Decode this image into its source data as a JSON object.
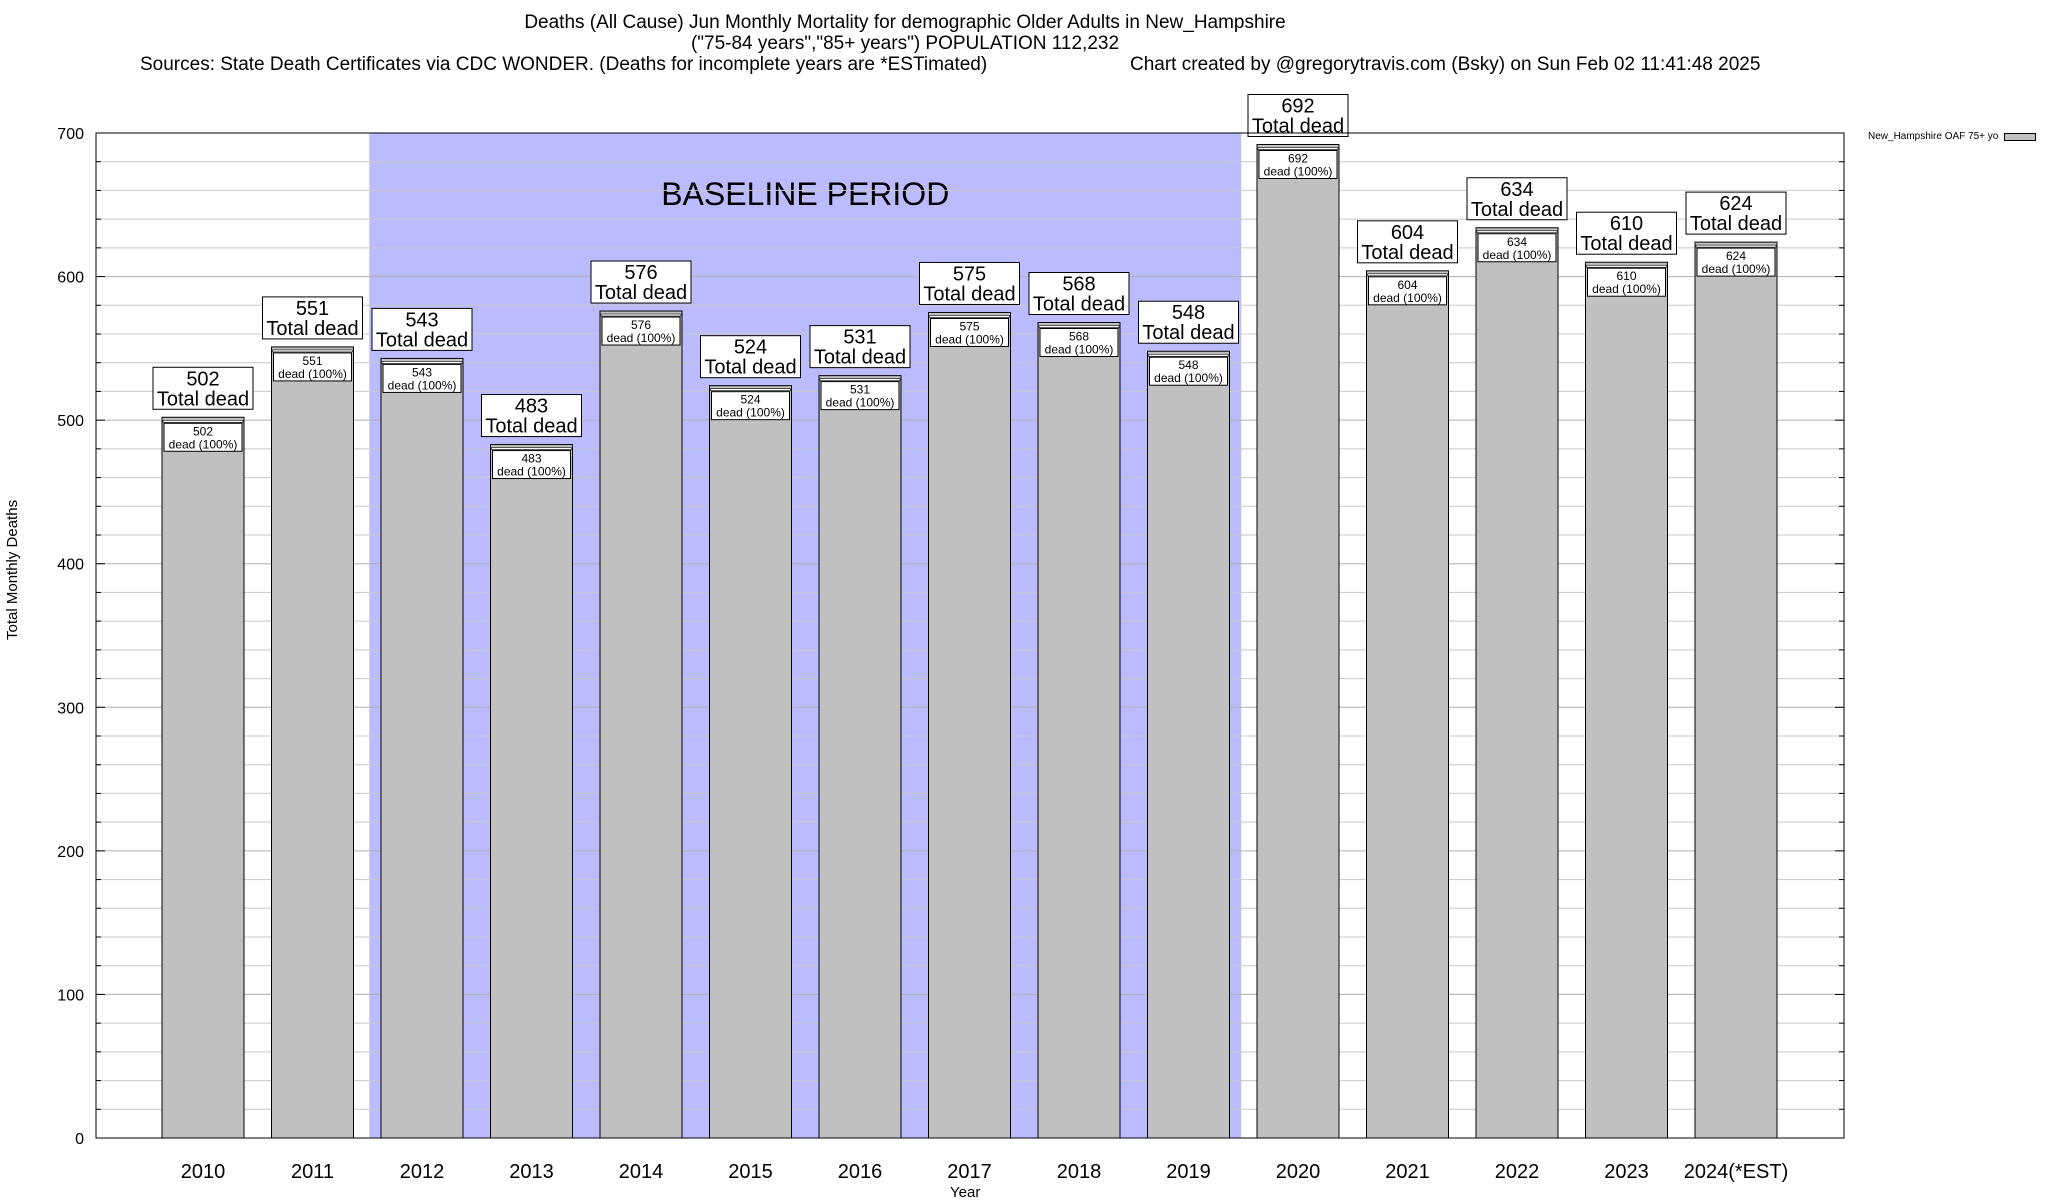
{
  "chart_data": {
    "type": "bar",
    "title_lines": [
      "Deaths (All Cause) Jun Monthly Mortality for demographic Older Adults in New_Hampshire",
      "(\"75-84 years\",\"85+ years\") POPULATION 112,232"
    ],
    "sources": "Sources: State Death Certificates via CDC WONDER. (Deaths for incomplete years are *ESTimated)",
    "credit": "Chart created by @gregorytravis.com (Bsky) on Sun Feb 02 11:41:48 2025",
    "xlabel": "Year",
    "ylabel": "Total Monthly Deaths",
    "ylim": [
      0,
      700
    ],
    "yticks": [
      0,
      100,
      200,
      300,
      400,
      500,
      600,
      700
    ],
    "grid": true,
    "legend_position": "top-right",
    "baseline_label": "BASELINE PERIOD",
    "baseline_range": [
      "2012",
      "2019"
    ],
    "bar_label_text": "Total dead",
    "inner_label_text": "dead (100%)",
    "categories": [
      "2010",
      "2011",
      "2012",
      "2013",
      "2014",
      "2015",
      "2016",
      "2017",
      "2018",
      "2019",
      "2020",
      "2021",
      "2022",
      "2023",
      "2024(*EST)"
    ],
    "series": [
      {
        "name": "New_Hampshire OAF 75+ yo",
        "values": [
          502,
          551,
          543,
          483,
          576,
          524,
          531,
          575,
          568,
          548,
          692,
          604,
          634,
          610,
          624
        ]
      }
    ],
    "colors": {
      "bar": "#c0c0c0",
      "baseline_shade": "#bbbbff",
      "grid": "#c8c8c8"
    }
  }
}
